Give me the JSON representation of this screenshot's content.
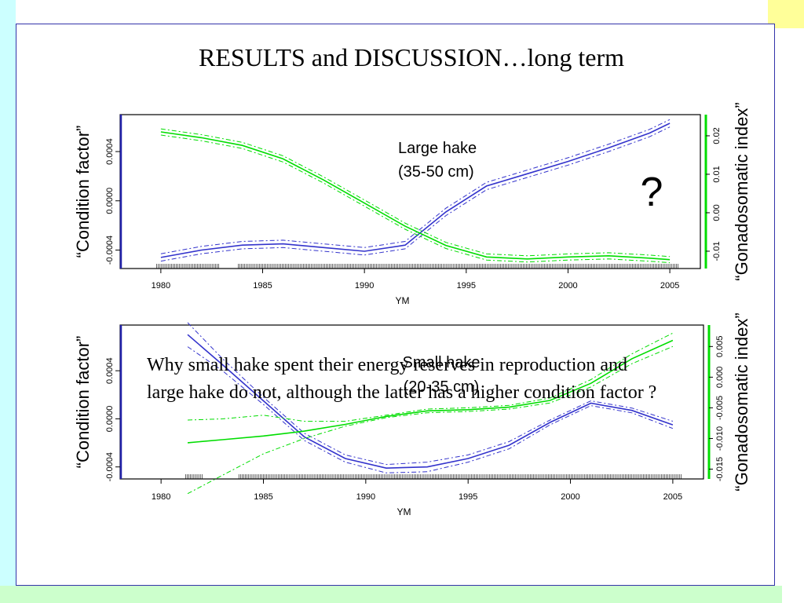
{
  "slide": {
    "title": "RESULTS and DISCUSSION…long term",
    "question_mark": "?",
    "question_text": "Why small hake spent their energy reserves in reproduction and large hake do not, although the latter has a higher condition factor ?"
  },
  "chart_data": [
    {
      "type": "line",
      "panel_label": [
        "Large hake",
        "(35-50 cm)"
      ],
      "xlabel": "YM",
      "left_axis_label": "“Condition factor”",
      "right_axis_label": "“Gonadosomatic index”",
      "xlim": [
        1978,
        2006.5
      ],
      "x_ticks": [
        1980,
        1985,
        1990,
        1995,
        2000,
        2005
      ],
      "left_ylim": [
        -0.00055,
        0.0007
      ],
      "left_ticks": [
        "-0.0004",
        "0.0000",
        "0.0004"
      ],
      "right_ylim": [
        -0.0145,
        0.0255
      ],
      "right_ticks": [
        "-0.01",
        "0.00",
        "0.01",
        "0.02"
      ],
      "series": [
        {
          "color": "#3333cc",
          "axis": "left",
          "x": [
            1980,
            1982,
            1984,
            1986,
            1988,
            1990,
            1992,
            1994,
            1996,
            1998,
            2000,
            2002,
            2004,
            2005
          ],
          "y": [
            -0.00046,
            -0.0004,
            -0.00036,
            -0.00035,
            -0.00038,
            -0.00041,
            -0.00036,
            -9e-05,
            0.00012,
            0.00022,
            0.00032,
            0.00043,
            0.00055,
            0.00063
          ],
          "band": 3e-05
        },
        {
          "color": "#00dd00",
          "axis": "right",
          "x": [
            1980,
            1982,
            1984,
            1986,
            1988,
            1990,
            1992,
            1994,
            1996,
            1998,
            2000,
            2002,
            2004,
            2005
          ],
          "y": [
            0.021,
            0.0195,
            0.0175,
            0.014,
            0.0085,
            0.0025,
            -0.0035,
            -0.0085,
            -0.0115,
            -0.012,
            -0.0115,
            -0.0112,
            -0.0118,
            -0.0122
          ],
          "band": 0.0008
        }
      ],
      "rug_spans": [
        [
          1979.8,
          1982.9
        ],
        [
          1983.8,
          2005.4
        ]
      ]
    },
    {
      "type": "line",
      "panel_label": [
        "Small hake",
        "(20-35 cm)"
      ],
      "xlabel": "YM",
      "left_axis_label": "“Condition factor”",
      "right_axis_label": "“Gonadosomatic index”",
      "xlim": [
        1978,
        2006.5
      ],
      "x_ticks": [
        1980,
        1985,
        1990,
        1995,
        2000,
        2005
      ],
      "left_ylim": [
        -0.0005,
        0.00078
      ],
      "left_ticks": [
        "-0.0004",
        "0.0000",
        "0.0004"
      ],
      "right_ylim": [
        -0.0166,
        0.0085
      ],
      "right_ticks": [
        "-0.015",
        "-0.010",
        "-0.005",
        "0.000",
        "0.005"
      ],
      "series": [
        {
          "color": "#3333cc",
          "axis": "left",
          "x": [
            1981.3,
            1983,
            1985,
            1987,
            1989,
            1991,
            1993,
            1995,
            1997,
            1999,
            2001,
            2003,
            2005
          ],
          "y": [
            0.0007,
            0.00045,
            0.00015,
            -0.00015,
            -0.00033,
            -0.00041,
            -0.0004,
            -0.00033,
            -0.00022,
            -3e-05,
            0.00013,
            7e-05,
            -5e-05
          ],
          "band_lower": [
            0.0006,
            0.0004,
            0.00012,
            -0.00018,
            -0.00036,
            -0.00045,
            -0.00044,
            -0.00036,
            -0.00025,
            -5e-05,
            0.00011,
            5e-05,
            -8e-05
          ],
          "band_upper": [
            0.0008,
            0.0005,
            0.00018,
            -0.00012,
            -0.0003,
            -0.00038,
            -0.00036,
            -0.0003,
            -0.00019,
            -1e-05,
            0.00015,
            9e-05,
            -2e-05
          ]
        },
        {
          "color": "#00dd00",
          "axis": "right",
          "x": [
            1981.3,
            1983,
            1985,
            1987,
            1989,
            1991,
            1993,
            1995,
            1997,
            1999,
            2001,
            2003,
            2005
          ],
          "y": [
            -0.0107,
            -0.0102,
            -0.0096,
            -0.0088,
            -0.0077,
            -0.0064,
            -0.0055,
            -0.0053,
            -0.0049,
            -0.0038,
            -0.001,
            0.003,
            0.006
          ],
          "band_lower": [
            -0.019,
            -0.016,
            -0.0125,
            -0.01,
            -0.008,
            -0.0066,
            -0.0058,
            -0.0056,
            -0.0052,
            -0.0042,
            -0.0016,
            0.0022,
            0.005
          ],
          "band_upper": [
            -0.007,
            -0.0068,
            -0.0062,
            -0.0072,
            -0.0072,
            -0.0062,
            -0.0052,
            -0.005,
            -0.0046,
            -0.0034,
            -0.0004,
            0.0038,
            0.0072
          ]
        }
      ],
      "rug_spans": [
        [
          1981.2,
          1982.0
        ],
        [
          1983.8,
          2005.4
        ]
      ]
    }
  ]
}
